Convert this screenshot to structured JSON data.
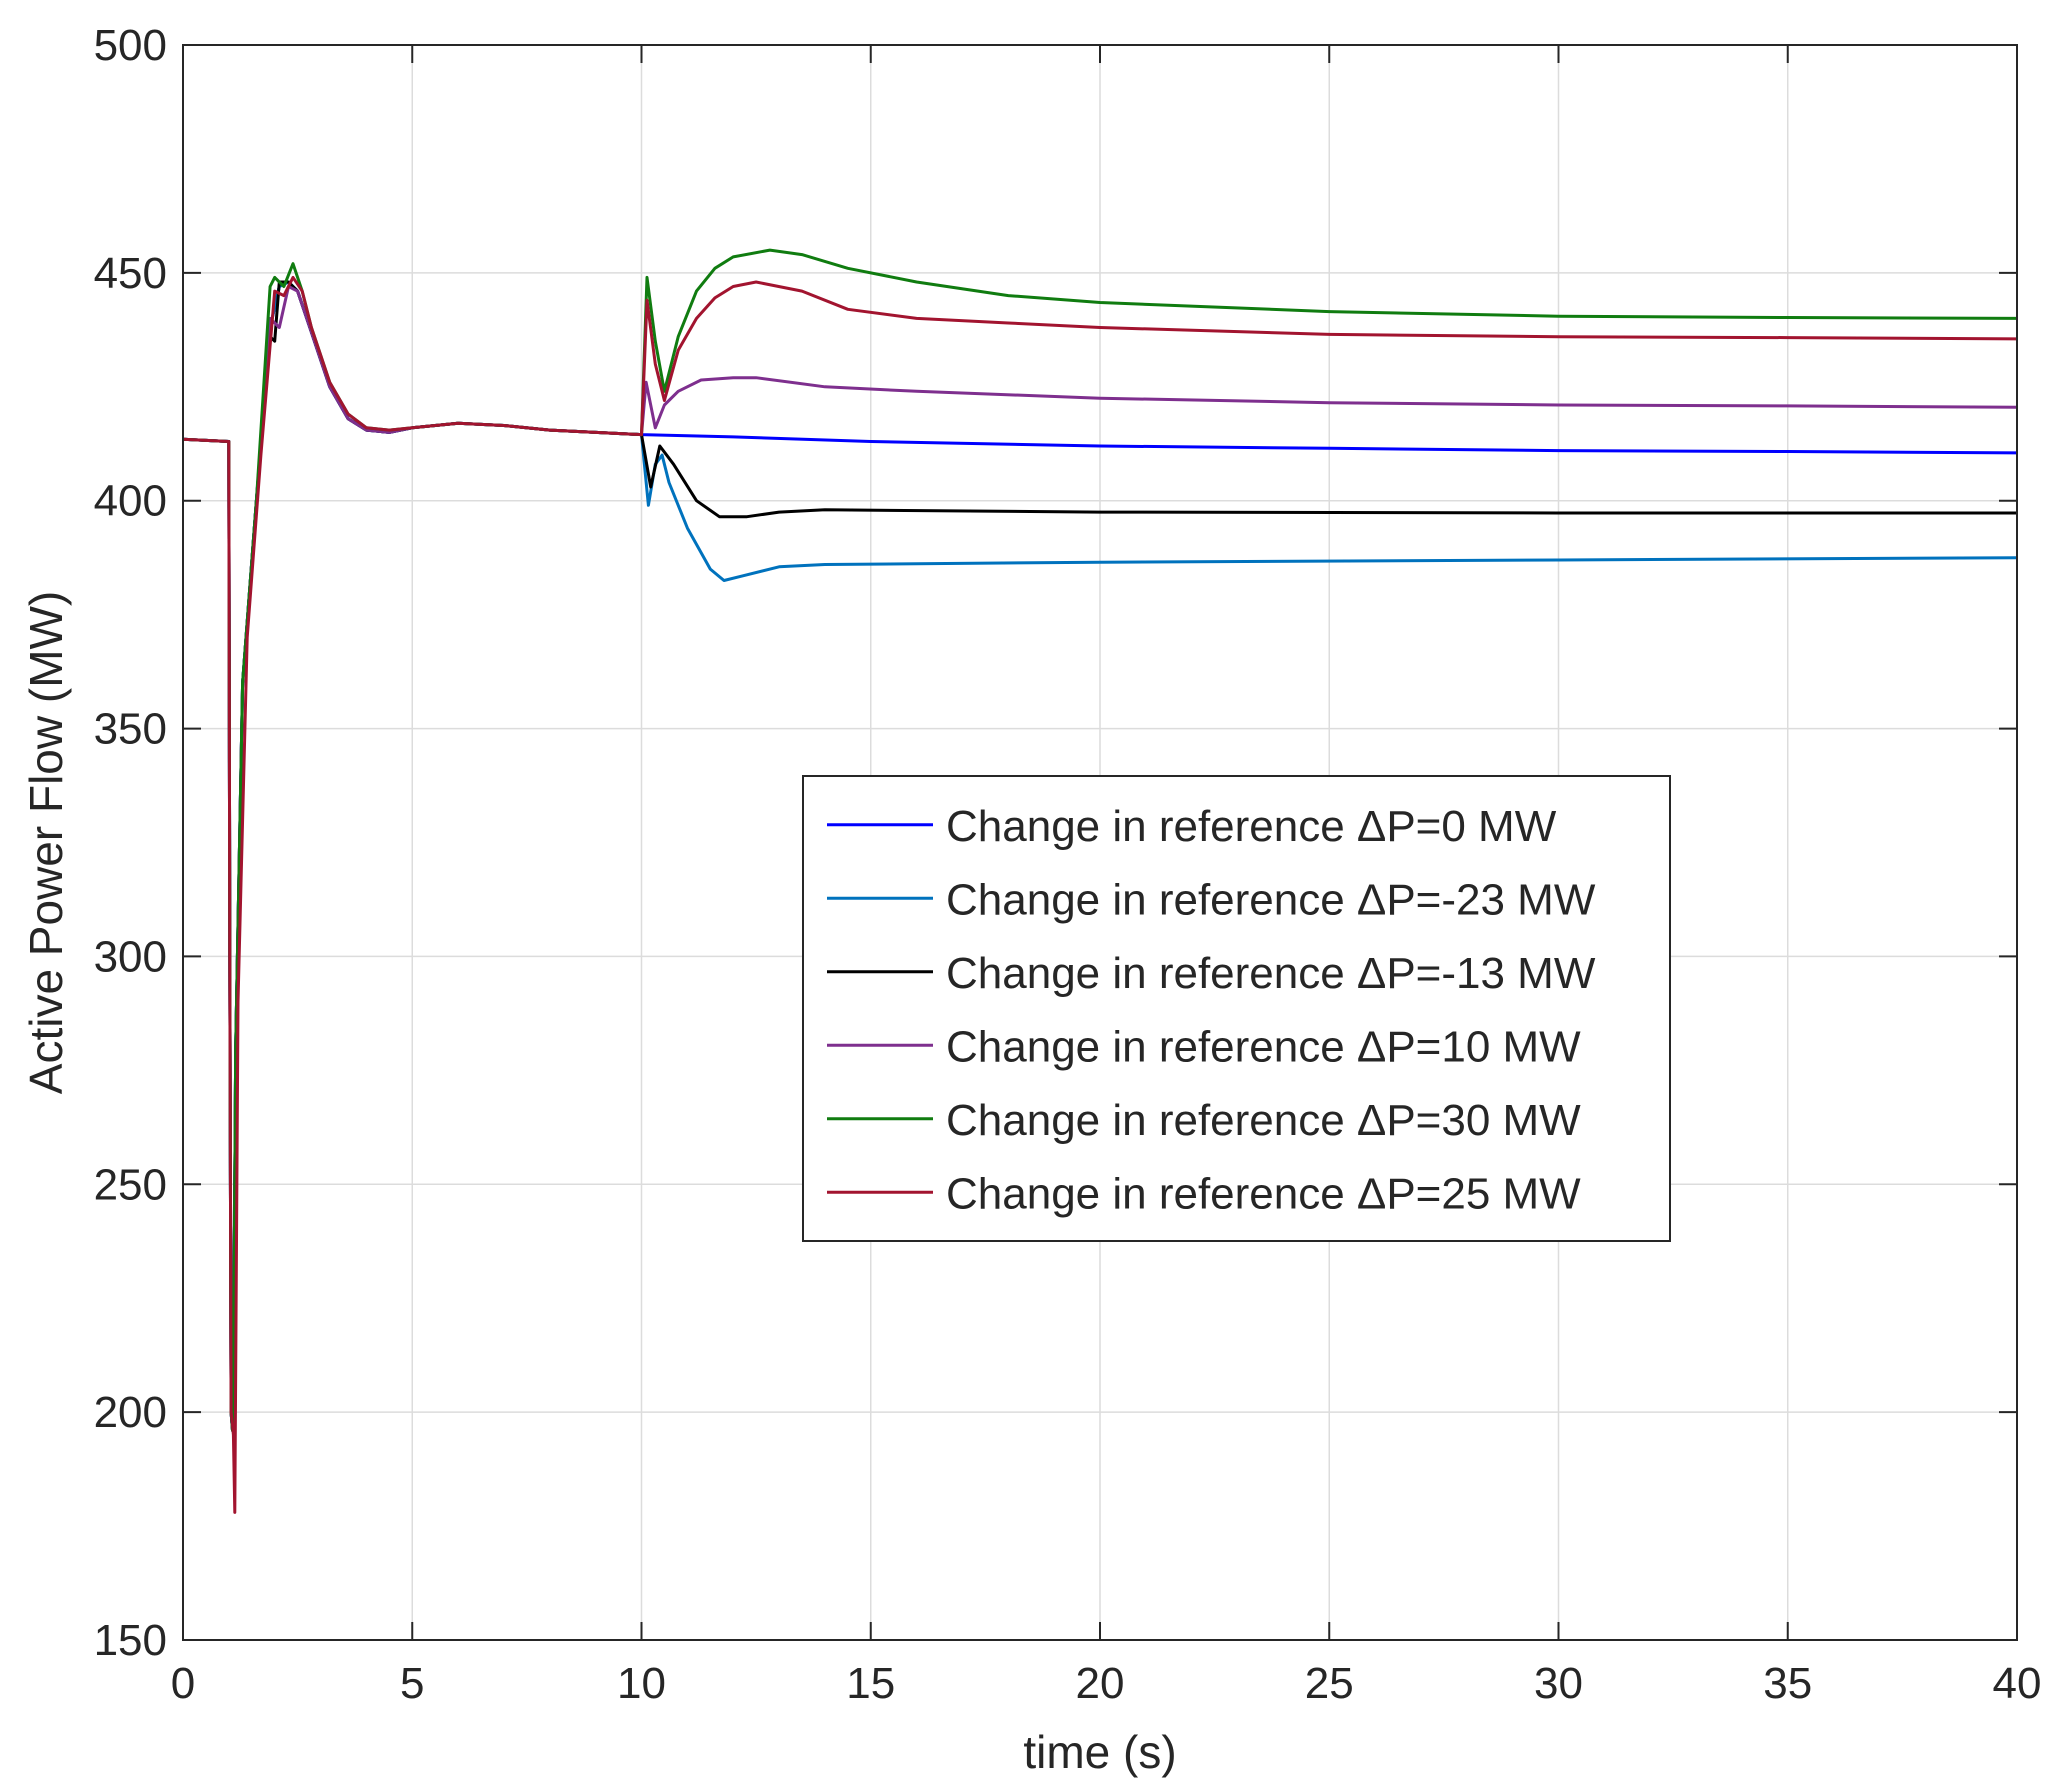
{
  "chart_data": {
    "type": "line",
    "title": "",
    "xlabel": "time (s)",
    "ylabel": "Active Power Flow (MW)",
    "xlim": [
      0,
      40
    ],
    "ylim": [
      150,
      500
    ],
    "xticks": [
      0,
      5,
      10,
      15,
      20,
      25,
      30,
      35,
      40
    ],
    "yticks": [
      150,
      200,
      250,
      300,
      350,
      400,
      450,
      500
    ],
    "grid": true,
    "legend_position": "center-right",
    "series": [
      {
        "name": "Change in reference ΔP=0 MW",
        "color": "#0000ff",
        "x": [
          0,
          1.0,
          1.02,
          1.05,
          1.08,
          1.1,
          1.15,
          1.3,
          1.6,
          1.9,
          2.1,
          2.3,
          2.5,
          2.8,
          3.2,
          3.6,
          4.0,
          4.5,
          5.0,
          6.0,
          7.0,
          8.0,
          9.0,
          10.0,
          12,
          15,
          20,
          25,
          30,
          35,
          40
        ],
        "y": [
          413.5,
          413,
          300,
          200,
          196,
          205,
          280,
          360,
          400,
          438,
          447,
          448,
          446,
          437,
          425,
          418,
          415.5,
          415,
          416,
          417,
          416.5,
          415.5,
          415,
          414.5,
          414,
          413,
          412,
          411.5,
          411,
          410.8,
          410.5
        ]
      },
      {
        "name": "Change in reference ΔP=-23 MW",
        "color": "#0072bd",
        "x": [
          0,
          1.0,
          1.02,
          1.05,
          1.08,
          1.1,
          1.15,
          1.3,
          1.6,
          1.9,
          2.1,
          2.3,
          2.5,
          2.8,
          3.2,
          3.6,
          4.0,
          4.5,
          5.0,
          6.0,
          7.0,
          8.0,
          9.0,
          10.0,
          10.15,
          10.3,
          10.45,
          10.6,
          11.0,
          11.5,
          11.8,
          12.2,
          13.0,
          14.0,
          20,
          30,
          40
        ],
        "y": [
          413.5,
          413,
          300,
          200,
          196,
          205,
          280,
          360,
          400,
          438,
          447,
          448,
          446,
          437,
          425,
          418,
          415.5,
          415,
          416,
          417,
          416.5,
          415.5,
          415,
          414.5,
          399,
          408,
          410,
          404,
          394,
          385,
          382.5,
          383.5,
          385.5,
          386,
          386.5,
          387,
          387.5
        ]
      },
      {
        "name": "Change in reference ΔP=-13 MW",
        "color": "#000000",
        "x": [
          0,
          1.0,
          1.02,
          1.05,
          1.08,
          1.1,
          1.15,
          1.3,
          1.6,
          1.9,
          2.0,
          2.1,
          2.3,
          2.5,
          2.8,
          3.2,
          3.6,
          4.0,
          4.5,
          5.0,
          6.0,
          7.0,
          8.0,
          9.0,
          10.0,
          10.2,
          10.4,
          10.7,
          11.2,
          11.7,
          12.3,
          13,
          14,
          20,
          30,
          40
        ],
        "y": [
          413.5,
          413,
          300,
          200,
          196,
          205,
          280,
          360,
          400,
          436,
          435,
          448,
          448,
          446,
          437,
          425,
          418,
          415.5,
          415,
          416,
          417,
          416.5,
          415.5,
          415,
          414.5,
          403,
          412,
          408,
          400,
          396.5,
          396.5,
          397.5,
          398,
          397.5,
          397.3,
          397.3
        ]
      },
      {
        "name": "Change in reference ΔP=10 MW",
        "color": "#7e2f8e",
        "x": [
          0,
          1.0,
          1.02,
          1.05,
          1.08,
          1.1,
          1.15,
          1.3,
          1.6,
          1.9,
          2.1,
          2.3,
          2.5,
          2.8,
          3.2,
          3.6,
          4.0,
          4.5,
          5.0,
          6.0,
          7.0,
          8.0,
          9.0,
          10.0,
          10.1,
          10.3,
          10.5,
          10.8,
          11.3,
          12.0,
          12.5,
          14,
          16,
          20,
          25,
          30,
          35,
          40
        ],
        "y": [
          413.5,
          413,
          300,
          200,
          196,
          205,
          280,
          360,
          400,
          440,
          438,
          447,
          446,
          437,
          425,
          418,
          415.5,
          415,
          416,
          417,
          416.5,
          415.5,
          415,
          414.5,
          426,
          416,
          421,
          424,
          426.5,
          427,
          427,
          425,
          424,
          422.5,
          421.5,
          421,
          420.8,
          420.5
        ]
      },
      {
        "name": "Change in reference ΔP=30 MW",
        "color": "#107c10",
        "x": [
          0,
          1.0,
          1.02,
          1.05,
          1.08,
          1.1,
          1.15,
          1.3,
          1.6,
          1.9,
          2.0,
          2.2,
          2.4,
          2.6,
          2.8,
          3.2,
          3.6,
          4.0,
          4.5,
          5.0,
          6.0,
          7.0,
          8.0,
          9.0,
          10.0,
          10.12,
          10.3,
          10.5,
          10.8,
          11.2,
          11.6,
          12.0,
          12.8,
          13.5,
          14.5,
          16,
          18,
          20,
          25,
          30,
          35,
          40
        ],
        "y": [
          413.5,
          413,
          300,
          200,
          196,
          205,
          280,
          360,
          400,
          447,
          449,
          447,
          452,
          446,
          438,
          426,
          419,
          416,
          415.5,
          416,
          417,
          416.5,
          415.5,
          415,
          414.5,
          449,
          435,
          424,
          436,
          446,
          451,
          453.5,
          455,
          454,
          451,
          448,
          445,
          443.5,
          441.5,
          440.5,
          440.2,
          440
        ]
      },
      {
        "name": "Change in reference ΔP=25 MW",
        "color": "#a2142f",
        "x": [
          0,
          1.0,
          1.02,
          1.05,
          1.07,
          1.1,
          1.13,
          1.2,
          1.4,
          1.7,
          2.0,
          2.2,
          2.4,
          2.6,
          2.8,
          3.2,
          3.6,
          4.0,
          4.5,
          5.0,
          6.0,
          7.0,
          8.0,
          9.0,
          10.0,
          10.12,
          10.3,
          10.5,
          10.8,
          11.2,
          11.6,
          12.0,
          12.5,
          13.5,
          14.5,
          16,
          18,
          20,
          25,
          30,
          35,
          40
        ],
        "y": [
          413.5,
          413,
          300,
          200,
          198,
          195,
          178,
          290,
          370,
          410,
          446,
          445,
          449,
          446,
          438,
          426,
          419,
          416,
          415.5,
          416,
          417,
          416.5,
          415.5,
          415,
          414.5,
          444,
          430,
          422,
          433,
          440,
          444.5,
          447,
          448,
          446,
          442,
          440,
          439,
          438,
          436.5,
          436,
          435.8,
          435.5
        ]
      }
    ]
  }
}
